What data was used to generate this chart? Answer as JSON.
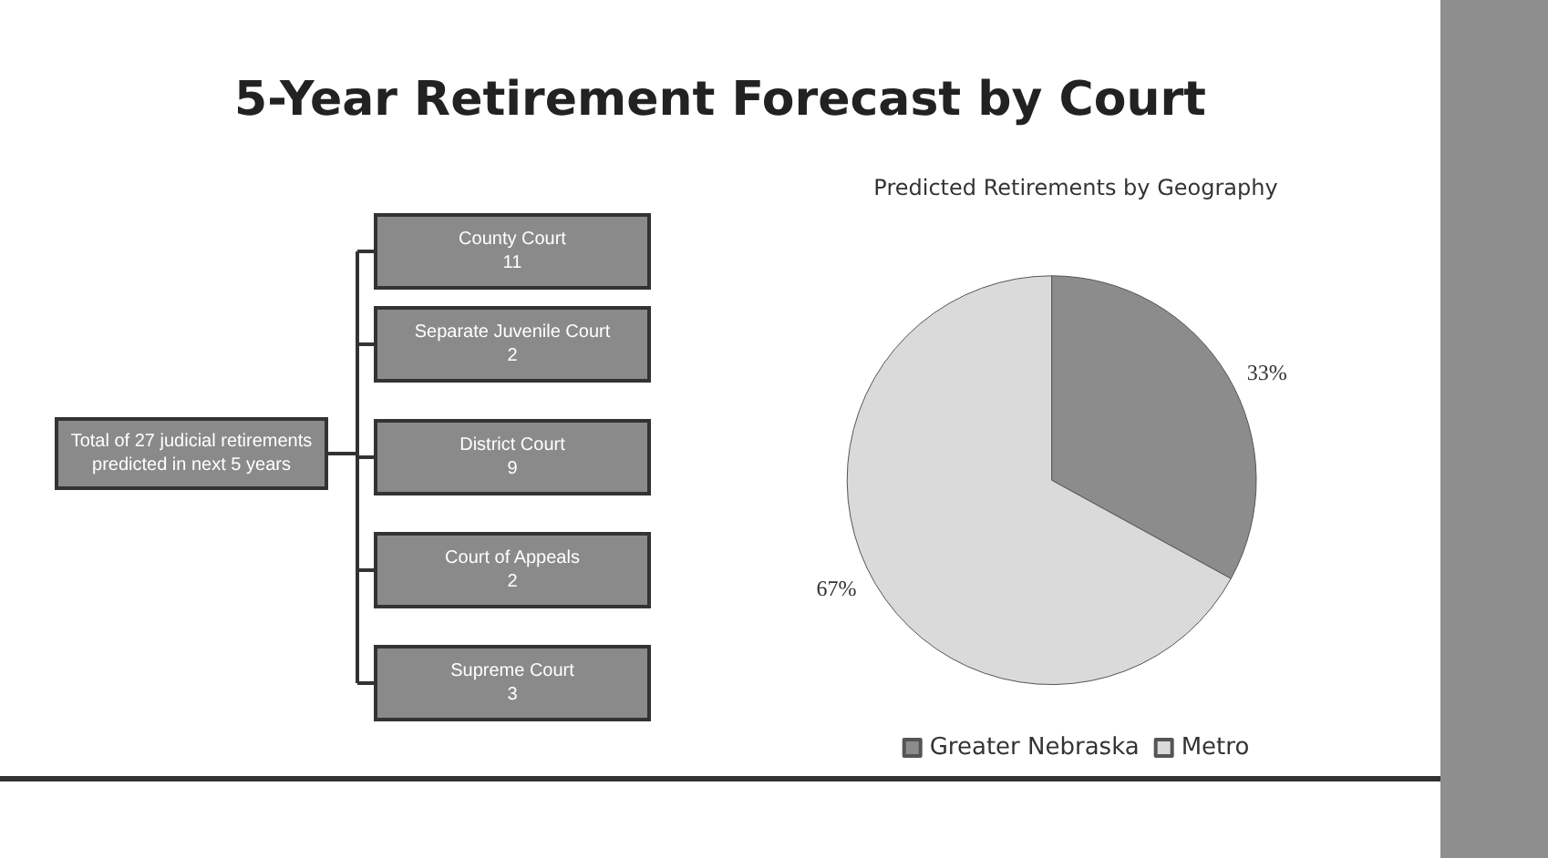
{
  "chart_data": [
    {
      "type": "other",
      "title": "5-Year Retirement Forecast by Court",
      "annotations": [
        "Total of 27 judicial retirements predicted in next 5 years"
      ],
      "categories": [
        "County Court",
        "Separate Juvenile Court",
        "District Court",
        "Court of Appeals",
        "Supreme Court"
      ],
      "values": [
        11,
        2,
        9,
        2,
        3
      ],
      "data_labels": true,
      "color": "#8a8a8a"
    },
    {
      "type": "pie",
      "title": "Predicted Retirements by Geography",
      "categories": [
        "Greater Nebraska",
        "Metro"
      ],
      "values": [
        33,
        67
      ],
      "colors": [
        "#8c8c8c",
        "#dadada"
      ],
      "value_labels": [
        "33%",
        "67%"
      ],
      "legend": "bottom"
    }
  ]
}
